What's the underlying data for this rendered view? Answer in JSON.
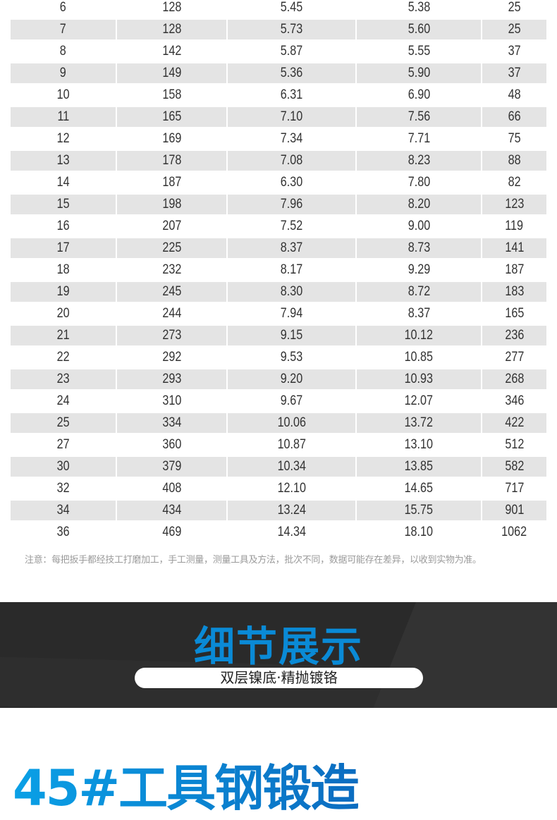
{
  "table": {
    "rows": [
      [
        "6",
        "128",
        "5.45",
        "5.38",
        "25"
      ],
      [
        "7",
        "128",
        "5.73",
        "5.60",
        "25"
      ],
      [
        "8",
        "142",
        "5.87",
        "5.55",
        "37"
      ],
      [
        "9",
        "149",
        "5.36",
        "5.90",
        "37"
      ],
      [
        "10",
        "158",
        "6.31",
        "6.90",
        "48"
      ],
      [
        "11",
        "165",
        "7.10",
        "7.56",
        "66"
      ],
      [
        "12",
        "169",
        "7.34",
        "7.71",
        "75"
      ],
      [
        "13",
        "178",
        "7.08",
        "8.23",
        "88"
      ],
      [
        "14",
        "187",
        "6.30",
        "7.80",
        "82"
      ],
      [
        "15",
        "198",
        "7.96",
        "8.20",
        "123"
      ],
      [
        "16",
        "207",
        "7.52",
        "9.00",
        "119"
      ],
      [
        "17",
        "225",
        "8.37",
        "8.73",
        "141"
      ],
      [
        "18",
        "232",
        "8.17",
        "9.29",
        "187"
      ],
      [
        "19",
        "245",
        "8.30",
        "8.72",
        "183"
      ],
      [
        "20",
        "244",
        "7.94",
        "8.37",
        "165"
      ],
      [
        "21",
        "273",
        "9.15",
        "10.12",
        "236"
      ],
      [
        "22",
        "292",
        "9.53",
        "10.85",
        "277"
      ],
      [
        "23",
        "293",
        "9.20",
        "10.93",
        "268"
      ],
      [
        "24",
        "310",
        "9.67",
        "12.07",
        "346"
      ],
      [
        "25",
        "334",
        "10.06",
        "13.72",
        "422"
      ],
      [
        "27",
        "360",
        "10.87",
        "13.10",
        "512"
      ],
      [
        "30",
        "379",
        "10.34",
        "13.85",
        "582"
      ],
      [
        "32",
        "408",
        "12.10",
        "14.65",
        "717"
      ],
      [
        "34",
        "434",
        "13.24",
        "15.75",
        "901"
      ],
      [
        "36",
        "469",
        "14.34",
        "18.10",
        "1062"
      ]
    ]
  },
  "note": "注意：每把扳手都经技工打磨加工，手工测量，测量工具及方法，批次不同，数据可能存在差异，以收到实物为准。",
  "banner": {
    "title": "细节展示",
    "subtitle": "双层镍底·精抛镀铬",
    "bg_color": "#2a2a2a",
    "title_color": "#0a8ad6"
  },
  "heading": "45#工具钢锻造"
}
